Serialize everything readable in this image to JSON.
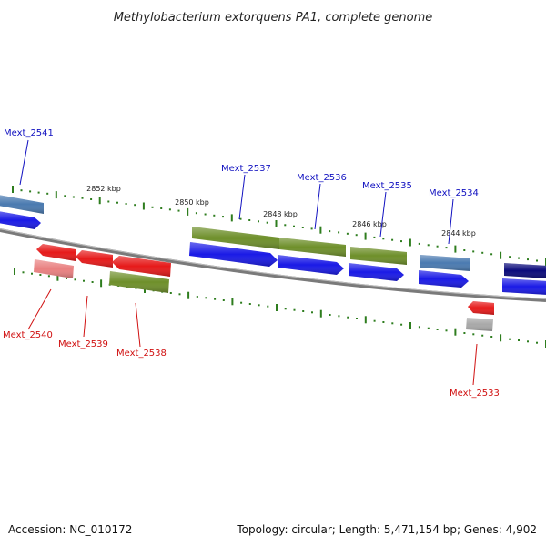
{
  "title": "Methylobacterium extorquens PA1, complete genome",
  "footer": {
    "accession": "Accession: NC_010172",
    "summary": "Topology: circular; Length: 5,471,154 bp; Genes: 4,902"
  },
  "colors": {
    "background": "#ffffff",
    "backbone": "#7a7a7a",
    "tick": "#2e7d1e",
    "forward_label": "#1010c0",
    "reverse_label": "#d01010",
    "blue": "#1a1ae6",
    "olive": "#6e8f2a",
    "steel": "#4a7ab0",
    "navy": "#0a0a7a",
    "red": "#e61a1a",
    "pink": "#e98080",
    "grey": "#a8a8a8"
  },
  "ticks": [
    {
      "label": "2852 kbp"
    },
    {
      "label": "2850 kbp"
    },
    {
      "label": "2848 kbp"
    },
    {
      "label": "2846 kbp"
    },
    {
      "label": "2844 kbp"
    }
  ],
  "genes": [
    {
      "name": "Mext_2541",
      "strand": "forward",
      "labeled": true
    },
    {
      "name": "Mext_2537",
      "strand": "forward",
      "labeled": true
    },
    {
      "name": "Mext_2536",
      "strand": "forward",
      "labeled": true
    },
    {
      "name": "Mext_2535",
      "strand": "forward",
      "labeled": true
    },
    {
      "name": "Mext_2534",
      "strand": "forward",
      "labeled": true
    },
    {
      "name": "",
      "strand": "forward",
      "labeled": false
    },
    {
      "name": "Mext_2540",
      "strand": "reverse",
      "labeled": true
    },
    {
      "name": "Mext_2539",
      "strand": "reverse",
      "labeled": true
    },
    {
      "name": "Mext_2538",
      "strand": "reverse",
      "labeled": true
    },
    {
      "name": "Mext_2533",
      "strand": "reverse",
      "labeled": true
    }
  ]
}
